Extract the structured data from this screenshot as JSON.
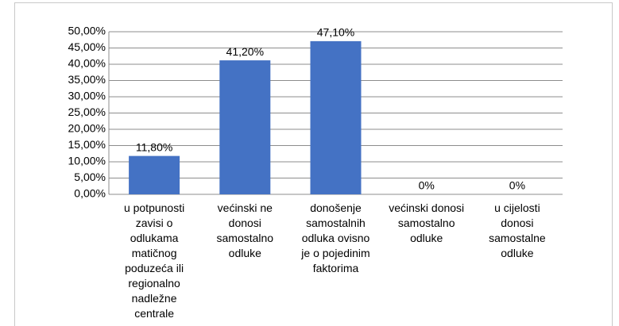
{
  "chart_data": {
    "type": "bar",
    "categories": [
      "u potpunosti zavisi o odlukama matičnog poduzeća ili regionalno nadležne centrale",
      "većinski ne donosi samostalno odluke",
      "donošenje samostalnih odluka ovisno je o pojedinim faktorima",
      "većinski donosi samostalno odluke",
      "u cijelosti donosi samostalne odluke"
    ],
    "values": [
      11.8,
      41.2,
      47.1,
      0,
      0
    ],
    "value_labels": [
      "11,80%",
      "41,20%",
      "47,10%",
      "0%",
      "0%"
    ],
    "color": "#4472c4",
    "ylim": [
      0,
      50
    ],
    "yticks": [
      {
        "value": 0,
        "label": "0,00%"
      },
      {
        "value": 5,
        "label": "5,00%"
      },
      {
        "value": 10,
        "label": "10,00%"
      },
      {
        "value": 15,
        "label": "15,00%"
      },
      {
        "value": 20,
        "label": "20,00%"
      },
      {
        "value": 25,
        "label": "25,00%"
      },
      {
        "value": 30,
        "label": "30,00%"
      },
      {
        "value": 35,
        "label": "35,00%"
      },
      {
        "value": 40,
        "label": "40,00%"
      },
      {
        "value": 45,
        "label": "45,00%"
      },
      {
        "value": 50,
        "label": "50,00%"
      }
    ],
    "grid": true
  }
}
